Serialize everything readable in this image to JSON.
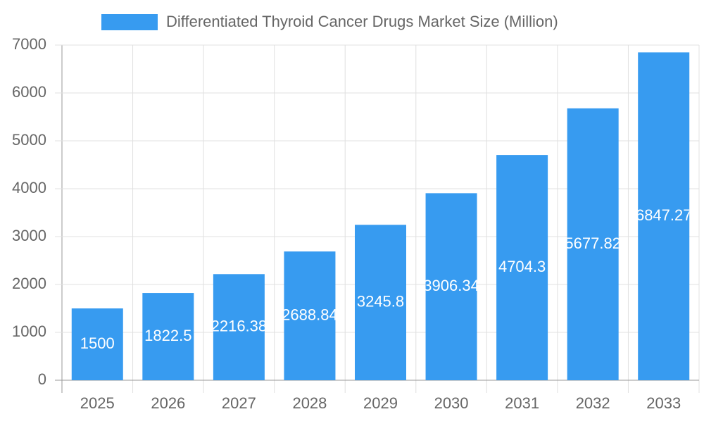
{
  "chart_data": {
    "type": "bar",
    "categories": [
      "2025",
      "2026",
      "2027",
      "2028",
      "2029",
      "2030",
      "2031",
      "2032",
      "2033"
    ],
    "series": [
      {
        "name": "Differentiated Thyroid Cancer Drugs Market Size (Million)",
        "color": "#379bf0",
        "values": [
          1500,
          1822.5,
          2216.38,
          2688.84,
          3245.8,
          3906.34,
          4704.3,
          5677.82,
          6847.27
        ]
      }
    ],
    "ylim": [
      0,
      7000
    ],
    "yticks": [
      0,
      1000,
      2000,
      3000,
      4000,
      5000,
      6000,
      7000
    ],
    "grid": true,
    "legend": "top"
  }
}
